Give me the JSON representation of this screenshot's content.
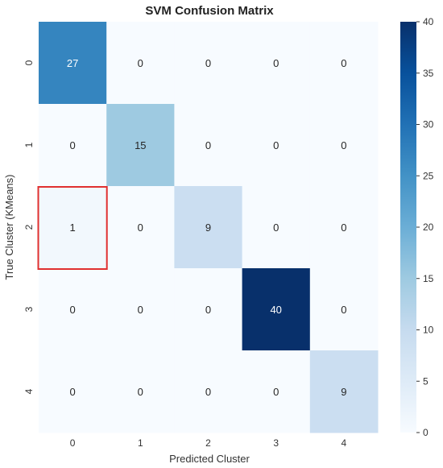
{
  "chart_data": {
    "type": "heatmap",
    "title": "SVM Confusion Matrix",
    "xlabel": "Predicted Cluster",
    "ylabel": "True Cluster (KMeans)",
    "x_categories": [
      "0",
      "1",
      "2",
      "3",
      "4"
    ],
    "y_categories": [
      "0",
      "1",
      "2",
      "3",
      "4"
    ],
    "values": [
      [
        27,
        0,
        0,
        0,
        0
      ],
      [
        0,
        15,
        0,
        0,
        0
      ],
      [
        1,
        0,
        9,
        0,
        0
      ],
      [
        0,
        0,
        0,
        40,
        0
      ],
      [
        0,
        0,
        0,
        0,
        9
      ]
    ],
    "colorbar": {
      "min": 0,
      "max": 40,
      "ticks": [
        "0",
        "5",
        "10",
        "15",
        "20",
        "25",
        "30",
        "35",
        "40"
      ],
      "colormap": "Blues"
    },
    "highlight": {
      "row": 2,
      "col": 0,
      "color": "#e03030"
    }
  }
}
